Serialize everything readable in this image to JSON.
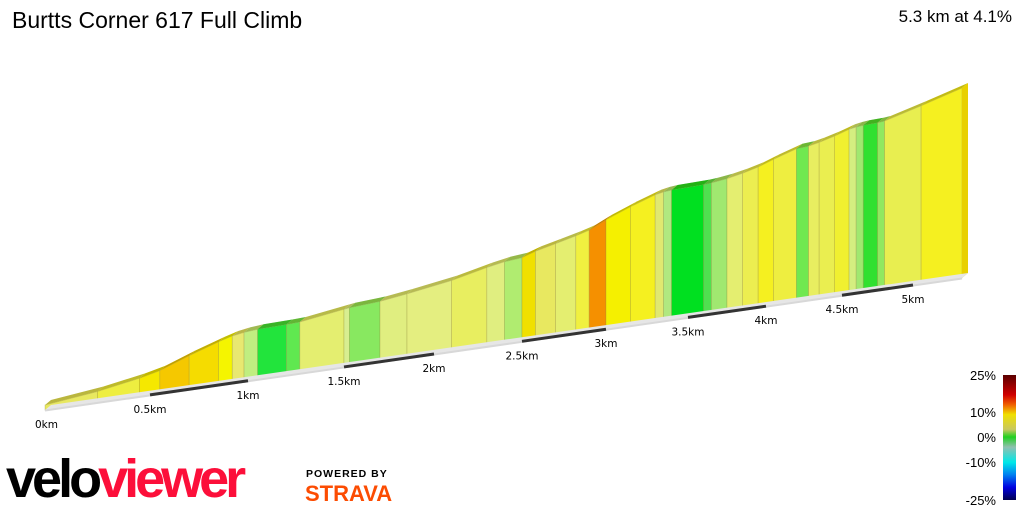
{
  "header": {
    "title": "Burtts Corner 617 Full Climb",
    "summary": "5.3 km at 4.1%"
  },
  "branding": {
    "velo": "velo",
    "viewer": "viewer",
    "powered_by": "POWERED BY",
    "strava": "STRAVA"
  },
  "chart_data": {
    "type": "area",
    "title": "Burtts Corner 617 Full Climb",
    "subtitle": "5.3 km at 4.1%",
    "distance_km": 5.3,
    "avg_gradient_pct": 4.1,
    "x_ticks": [
      "0km",
      "0.5km",
      "1km",
      "1.5km",
      "2km",
      "2.5km",
      "3km",
      "3.5km",
      "4km",
      "4.5km",
      "5km"
    ],
    "x_tick_values": [
      0,
      0.5,
      1,
      1.5,
      2,
      2.5,
      3,
      3.5,
      4,
      4.5,
      5
    ],
    "segments": [
      {
        "from": 0,
        "to": 0.25,
        "gradient": 3,
        "color": "#e8e860"
      },
      {
        "from": 0.25,
        "to": 0.45,
        "gradient": 4.5,
        "color": "#eeee40"
      },
      {
        "from": 0.45,
        "to": 0.55,
        "gradient": 6,
        "color": "#f5e800"
      },
      {
        "from": 0.55,
        "to": 0.7,
        "gradient": 9,
        "color": "#f5c800"
      },
      {
        "from": 0.7,
        "to": 0.85,
        "gradient": 8,
        "color": "#f5dc00"
      },
      {
        "from": 0.85,
        "to": 0.92,
        "gradient": 7,
        "color": "#f5f500"
      },
      {
        "from": 0.92,
        "to": 0.98,
        "gradient": 4,
        "color": "#e8e870"
      },
      {
        "from": 0.98,
        "to": 1.05,
        "gradient": 2,
        "color": "#c0ee80"
      },
      {
        "from": 1.05,
        "to": 1.2,
        "gradient": 0.5,
        "color": "#22e43c"
      },
      {
        "from": 1.2,
        "to": 1.27,
        "gradient": 1,
        "color": "#60e850"
      },
      {
        "from": 1.27,
        "to": 1.5,
        "gradient": 3.5,
        "color": "#e4ee70"
      },
      {
        "from": 1.5,
        "to": 1.53,
        "gradient": 3,
        "color": "#d8ee90"
      },
      {
        "from": 1.53,
        "to": 1.7,
        "gradient": 1.5,
        "color": "#88e860"
      },
      {
        "from": 1.7,
        "to": 1.85,
        "gradient": 3,
        "color": "#e0ee80"
      },
      {
        "from": 1.85,
        "to": 2.1,
        "gradient": 3.5,
        "color": "#e4ee80"
      },
      {
        "from": 2.1,
        "to": 2.3,
        "gradient": 5,
        "color": "#e8ee60"
      },
      {
        "from": 2.3,
        "to": 2.4,
        "gradient": 4,
        "color": "#e0ee80"
      },
      {
        "from": 2.4,
        "to": 2.5,
        "gradient": 2,
        "color": "#b0ec70"
      },
      {
        "from": 2.5,
        "to": 2.58,
        "gradient": 7,
        "color": "#f0e000"
      },
      {
        "from": 2.58,
        "to": 2.7,
        "gradient": 5,
        "color": "#e8e860"
      },
      {
        "from": 2.7,
        "to": 2.82,
        "gradient": 5,
        "color": "#e4ee70"
      },
      {
        "from": 2.82,
        "to": 2.9,
        "gradient": 6,
        "color": "#f0f040"
      },
      {
        "from": 2.9,
        "to": 3.0,
        "gradient": 10,
        "color": "#f59000"
      },
      {
        "from": 3.0,
        "to": 3.15,
        "gradient": 8,
        "color": "#f5f000"
      },
      {
        "from": 3.15,
        "to": 3.3,
        "gradient": 7,
        "color": "#f5f020"
      },
      {
        "from": 3.3,
        "to": 3.35,
        "gradient": 4,
        "color": "#e0e870"
      },
      {
        "from": 3.35,
        "to": 3.4,
        "gradient": 2,
        "color": "#b0e880"
      },
      {
        "from": 3.4,
        "to": 3.6,
        "gradient": 0.5,
        "color": "#00e020"
      },
      {
        "from": 3.6,
        "to": 3.65,
        "gradient": 1.5,
        "color": "#50e050"
      },
      {
        "from": 3.65,
        "to": 3.75,
        "gradient": 2.5,
        "color": "#a0e870"
      },
      {
        "from": 3.75,
        "to": 3.85,
        "gradient": 4,
        "color": "#e4ee70"
      },
      {
        "from": 3.85,
        "to": 3.95,
        "gradient": 5,
        "color": "#ecee50"
      },
      {
        "from": 3.95,
        "to": 4.05,
        "gradient": 7,
        "color": "#f5f020"
      },
      {
        "from": 4.05,
        "to": 4.2,
        "gradient": 6,
        "color": "#eeee40"
      },
      {
        "from": 4.2,
        "to": 4.28,
        "gradient": 1.5,
        "color": "#70e850"
      },
      {
        "from": 4.28,
        "to": 4.35,
        "gradient": 4,
        "color": "#e8ee60"
      },
      {
        "from": 4.35,
        "to": 4.45,
        "gradient": 5,
        "color": "#eaee50"
      },
      {
        "from": 4.45,
        "to": 4.55,
        "gradient": 6,
        "color": "#f0f030"
      },
      {
        "from": 4.55,
        "to": 4.6,
        "gradient": 3,
        "color": "#d4ee80"
      },
      {
        "from": 4.6,
        "to": 4.65,
        "gradient": 2,
        "color": "#a0e870"
      },
      {
        "from": 4.65,
        "to": 4.75,
        "gradient": 0.5,
        "color": "#30e030"
      },
      {
        "from": 4.75,
        "to": 4.8,
        "gradient": 2,
        "color": "#90e860"
      },
      {
        "from": 4.8,
        "to": 5.05,
        "gradient": 5,
        "color": "#e8ee50"
      },
      {
        "from": 5.05,
        "to": 5.3,
        "gradient": 6,
        "color": "#f5f020"
      }
    ],
    "legend": {
      "labels": [
        "25%",
        "10%",
        "0%",
        "-10%",
        "-25%"
      ],
      "values": [
        25,
        10,
        0,
        -10,
        -25
      ],
      "colors": [
        {
          "value": 25,
          "color": "#5a0000"
        },
        {
          "value": 17,
          "color": "#d00000"
        },
        {
          "value": 13,
          "color": "#f06000"
        },
        {
          "value": 9,
          "color": "#f0e000"
        },
        {
          "value": 3,
          "color": "#c8c860"
        },
        {
          "value": 0,
          "color": "#20d020"
        },
        {
          "value": -4,
          "color": "#90c0b0"
        },
        {
          "value": -10,
          "color": "#00e8e8"
        },
        {
          "value": -15,
          "color": "#0080f0"
        },
        {
          "value": -20,
          "color": "#0000e0"
        },
        {
          "value": -25,
          "color": "#000050"
        }
      ]
    }
  }
}
